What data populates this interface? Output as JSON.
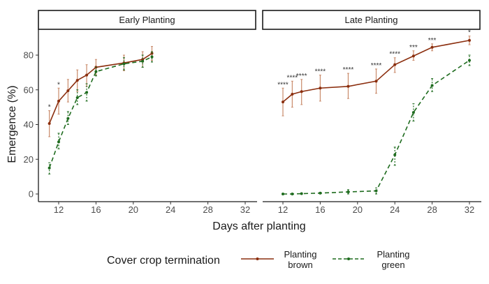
{
  "chart_data": {
    "type": "line",
    "xlabel": "Days after planting",
    "ylabel": "Emergence (%)",
    "ylim": [
      -3,
      95
    ],
    "xlim": [
      10,
      33
    ],
    "x_ticks": [
      12,
      16,
      20,
      24,
      28,
      32
    ],
    "y_ticks": [
      0,
      20,
      40,
      60,
      80
    ],
    "grid": false,
    "legend": {
      "title": "Cover crop termination",
      "placement": "bottom",
      "entries": [
        {
          "label_line1": "Planting",
          "label_line2": "brown",
          "color": "#8b2e0e",
          "dash": "solid"
        },
        {
          "label_line1": "Planting",
          "label_line2": "green",
          "color": "#1e6b1e",
          "dash": "dashed"
        }
      ]
    },
    "panels": [
      {
        "title": "Early Planting",
        "series": [
          {
            "name": "Planting brown",
            "color": "#8b2e0e",
            "error_color": "#c98a6a",
            "x": [
              11,
              12,
              13,
              14,
              15,
              16,
              19,
              21,
              22
            ],
            "y": [
              40.6,
              53.5,
              59.5,
              65.5,
              68.5,
              73,
              75.5,
              77.5,
              81
            ],
            "err_low": [
              33,
              46,
              53,
              59,
              62,
              68.5,
              71,
              73,
              77
            ],
            "err_high": [
              48,
              61,
              66,
              71.5,
              74.5,
              77.5,
              80,
              82,
              85
            ],
            "significance": [
              "*",
              "*",
              "",
              "",
              "",
              "",
              "",
              "",
              ""
            ]
          },
          {
            "name": "Planting green",
            "color": "#1e6b1e",
            "x": [
              11,
              12,
              13,
              14,
              15,
              16,
              19,
              21,
              22
            ],
            "y": [
              15,
              30,
              43.5,
              55.5,
              58.5,
              70.5,
              75,
              76.5,
              79
            ],
            "err_low": [
              11.5,
              26,
              40,
              51.5,
              53.5,
              68,
              71.5,
              73,
              76
            ],
            "err_high": [
              18,
              35,
              47.5,
              60,
              63.5,
              73,
              78.5,
              80,
              82
            ]
          }
        ]
      },
      {
        "title": "Late Planting",
        "series": [
          {
            "name": "Planting brown",
            "color": "#8b2e0e",
            "error_color": "#c98a6a",
            "x": [
              12,
              13,
              14,
              16,
              19,
              22,
              24,
              26,
              28,
              32
            ],
            "y": [
              53,
              57.5,
              59,
              61,
              62,
              65,
              74.5,
              79.5,
              84.5,
              88.5
            ],
            "err_low": [
              45,
              50,
              51.5,
              53.5,
              55,
              58,
              70,
              77,
              82.5,
              86
            ],
            "err_high": [
              61,
              65,
              66,
              68.5,
              69.5,
              72,
              78.5,
              82.5,
              86.5,
              91
            ],
            "significance": [
              "****",
              "****",
              "****",
              "****",
              "****",
              "****",
              "****",
              "***",
              "***",
              "*"
            ]
          },
          {
            "name": "Planting green",
            "color": "#1e6b1e",
            "x": [
              12,
              13,
              14,
              16,
              19,
              22,
              24,
              26,
              28,
              32
            ],
            "y": [
              0,
              0,
              0.2,
              0.5,
              1.2,
              1.8,
              22.5,
              47,
              62.5,
              77
            ],
            "err_low": [
              0,
              0,
              0,
              0,
              0,
              0,
              16.5,
              42,
              59,
              74
            ],
            "err_high": [
              0.3,
              0.3,
              0.5,
              1,
              2.5,
              3.5,
              27,
              52,
              66.5,
              80
            ]
          }
        ]
      }
    ]
  }
}
